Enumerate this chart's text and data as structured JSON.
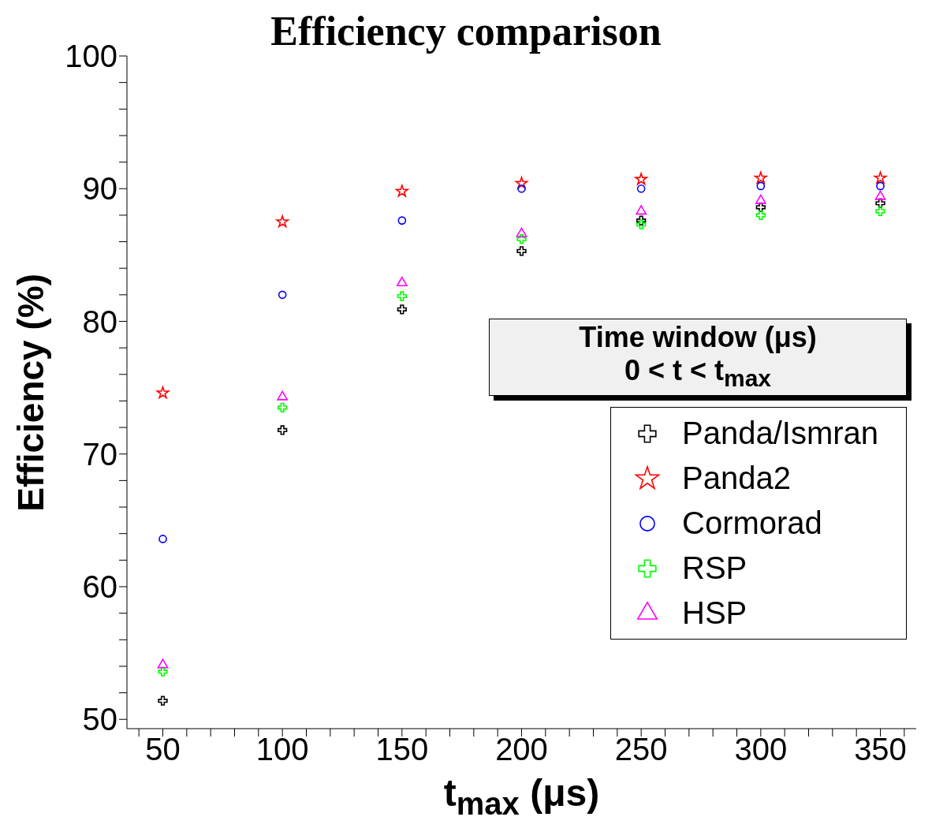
{
  "chart_data": {
    "type": "scatter",
    "title": "Efficiency comparison",
    "xlabel": "t$_{max}$ (μs)",
    "ylabel": "Efficiency (%)",
    "legend_title": "Time window (μs)",
    "annotations": [
      "0  < t < t$_{max}$"
    ],
    "legend": "right",
    "x": [
      50,
      100,
      150,
      200,
      250,
      300,
      350
    ],
    "xlim": [
      35,
      365
    ],
    "xticks": [
      {
        "value": 40,
        "label": null
      },
      50,
      {
        "value": 60,
        "label": null
      },
      {
        "value": 70,
        "label": null
      },
      {
        "value": 80,
        "label": null
      },
      {
        "value": 90,
        "label": null
      },
      100,
      {
        "value": 110,
        "label": null
      },
      {
        "value": 120,
        "label": null
      },
      {
        "value": 130,
        "label": null
      },
      {
        "value": 140,
        "label": null
      },
      150,
      {
        "value": 160,
        "label": null
      },
      {
        "value": 170,
        "label": null
      },
      {
        "value": 180,
        "label": null
      },
      {
        "value": 190,
        "label": null
      },
      200,
      {
        "value": 210,
        "label": null
      },
      {
        "value": 220,
        "label": null
      },
      {
        "value": 230,
        "label": null
      },
      {
        "value": 240,
        "label": null
      },
      250,
      {
        "value": 260,
        "label": null
      },
      {
        "value": 270,
        "label": null
      },
      {
        "value": 280,
        "label": null
      },
      {
        "value": 290,
        "label": null
      },
      300,
      {
        "value": 310,
        "label": null
      },
      {
        "value": 320,
        "label": null
      },
      {
        "value": 330,
        "label": null
      },
      {
        "value": 340,
        "label": null
      },
      350,
      {
        "value": 360,
        "label": null
      }
    ],
    "ylim": [
      49.3,
      100
    ],
    "yticks": [
      50,
      {
        "value": 52,
        "label": null
      },
      {
        "value": 54,
        "label": null
      },
      {
        "value": 56,
        "label": null
      },
      {
        "value": 58,
        "label": null
      },
      60,
      {
        "value": 62,
        "label": null
      },
      {
        "value": 64,
        "label": null
      },
      {
        "value": 66,
        "label": null
      },
      {
        "value": 68,
        "label": null
      },
      70,
      {
        "value": 72,
        "label": null
      },
      {
        "value": 74,
        "label": null
      },
      {
        "value": 76,
        "label": null
      },
      {
        "value": 78,
        "label": null
      },
      80,
      {
        "value": 82,
        "label": null
      },
      {
        "value": 84,
        "label": null
      },
      {
        "value": 86,
        "label": null
      },
      {
        "value": 88,
        "label": null
      },
      90,
      {
        "value": 92,
        "label": null
      },
      {
        "value": 94,
        "label": null
      },
      {
        "value": 96,
        "label": null
      },
      {
        "value": 98,
        "label": null
      },
      100
    ],
    "series": [
      {
        "name": "Panda/Ismran",
        "color": "#000000",
        "marker": "cross",
        "values": [
          51.4,
          71.8,
          80.9,
          85.3,
          87.6,
          88.6,
          88.9
        ]
      },
      {
        "name": "Panda2",
        "color": "#ff0000",
        "marker": "star",
        "values": [
          74.6,
          87.5,
          89.8,
          90.4,
          90.7,
          90.8,
          90.8
        ]
      },
      {
        "name": "Cormorad",
        "color": "#0000ff",
        "marker": "circle",
        "values": [
          63.6,
          82.0,
          87.6,
          90.0,
          90.0,
          90.2,
          90.2
        ]
      },
      {
        "name": "RSP",
        "color": "#00ff00",
        "marker": "cross",
        "values": [
          53.6,
          73.5,
          81.9,
          86.2,
          87.3,
          88.0,
          88.3
        ]
      },
      {
        "name": "HSP",
        "color": "#ff00ff",
        "marker": "triangle",
        "values": [
          54.1,
          74.3,
          82.9,
          86.6,
          88.3,
          89.1,
          89.4
        ]
      }
    ]
  }
}
